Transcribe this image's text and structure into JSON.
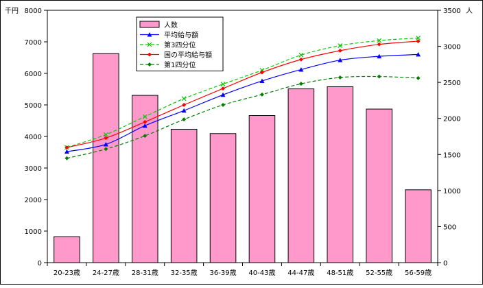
{
  "chart_data": {
    "type": "bar+line",
    "categories": [
      "20-23歳",
      "24-27歳",
      "28-31歳",
      "32-35歳",
      "36-39歳",
      "40-43歳",
      "44-47歳",
      "48-51歳",
      "52-55歳",
      "56-59歳"
    ],
    "left_axis": {
      "unit": "千円",
      "ylim": [
        0,
        8000
      ],
      "ticks": [
        "0",
        "1000",
        "2000",
        "3000",
        "4000",
        "5000",
        "6000",
        "7000",
        "8000"
      ]
    },
    "right_axis": {
      "unit": "人",
      "ylim": [
        0,
        3500
      ],
      "ticks": [
        "0",
        "500",
        "1000",
        "1500",
        "2000",
        "2500",
        "3000",
        "3500"
      ]
    },
    "bar_series": {
      "name": "人数",
      "color": "#ff99cc",
      "axis": "right",
      "values": [
        360,
        2900,
        2320,
        1850,
        1790,
        2040,
        2410,
        2440,
        2130,
        1010
      ]
    },
    "line_series": [
      {
        "name": "平均給与額",
        "color": "#0000ff",
        "marker": "triangle",
        "dashed": false,
        "values": [
          3520,
          3750,
          4340,
          4820,
          5320,
          5760,
          6120,
          6420,
          6540,
          6600
        ]
      },
      {
        "name": "第3四分位",
        "color": "#00cc00",
        "marker": "x",
        "dashed": true,
        "values": [
          3650,
          4060,
          4630,
          5200,
          5660,
          6100,
          6580,
          6880,
          7040,
          7120
        ]
      },
      {
        "name": "国の平均給与額",
        "color": "#ff0000",
        "marker": "diamond",
        "dashed": false,
        "values": [
          3650,
          3950,
          4460,
          5000,
          5520,
          6030,
          6440,
          6720,
          6920,
          7020
        ]
      },
      {
        "name": "第1四分位",
        "color": "#008000",
        "marker": "diamond",
        "dashed": true,
        "values": [
          3310,
          3600,
          4020,
          4540,
          5000,
          5330,
          5670,
          5870,
          5900,
          5850
        ]
      }
    ],
    "legend_position": "top-center",
    "grid": false
  }
}
